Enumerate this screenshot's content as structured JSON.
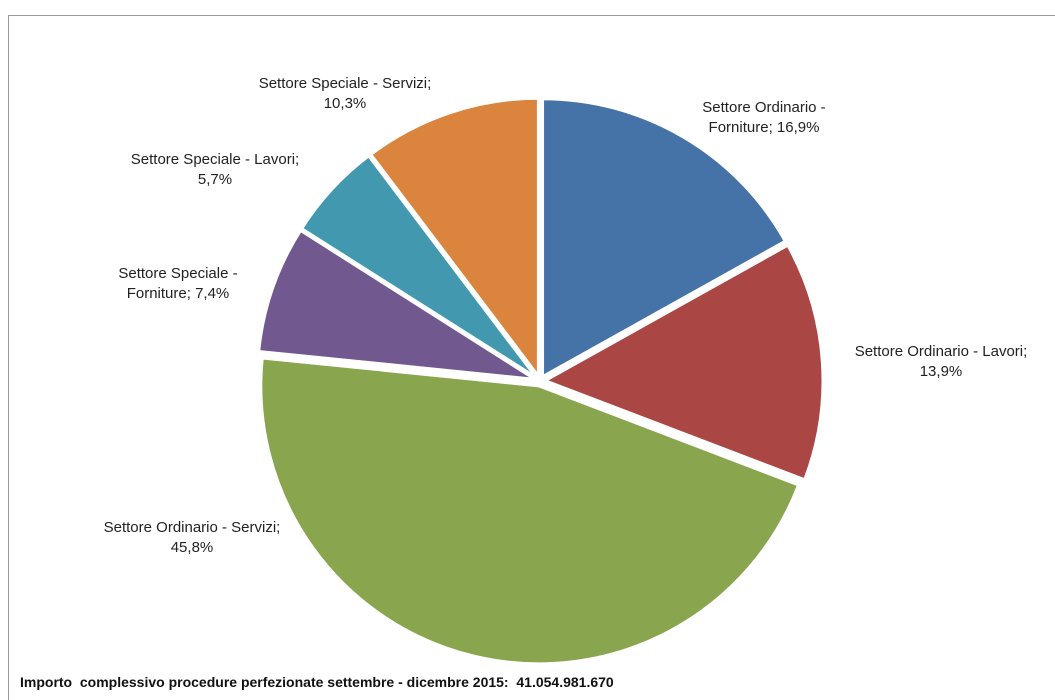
{
  "chart_data": {
    "type": "pie",
    "slices": [
      {
        "label_lines": [
          "Settore Ordinario -",
          "Forniture; 16,9%"
        ],
        "category": "Settore Ordinario - Forniture",
        "value": 16.9,
        "color": "#4572a7"
      },
      {
        "label_lines": [
          "Settore Ordinario - Lavori;",
          "13,9%"
        ],
        "category": "Settore Ordinario - Lavori",
        "value": 13.9,
        "color": "#aa4643"
      },
      {
        "label_lines": [
          "Settore Ordinario - Servizi;",
          "45,8%"
        ],
        "category": "Settore Ordinario - Servizi",
        "value": 45.8,
        "color": "#89a54e"
      },
      {
        "label_lines": [
          "Settore Speciale -",
          "Forniture; 7,4%"
        ],
        "category": "Settore Speciale - Forniture",
        "value": 7.4,
        "color": "#71588f"
      },
      {
        "label_lines": [
          "Settore Speciale - Lavori;",
          "5,7%"
        ],
        "category": "Settore Speciale - Lavori",
        "value": 5.7,
        "color": "#4198af"
      },
      {
        "label_lines": [
          "Settore Speciale - Servizi;",
          "10,3%"
        ],
        "category": "Settore Speciale - Servizi",
        "value": 10.3,
        "color": "#db843d"
      }
    ],
    "footnote": "Importo  complessivo procedure perfezionate settembre - dicembre 2015:  41.054.981.670"
  }
}
